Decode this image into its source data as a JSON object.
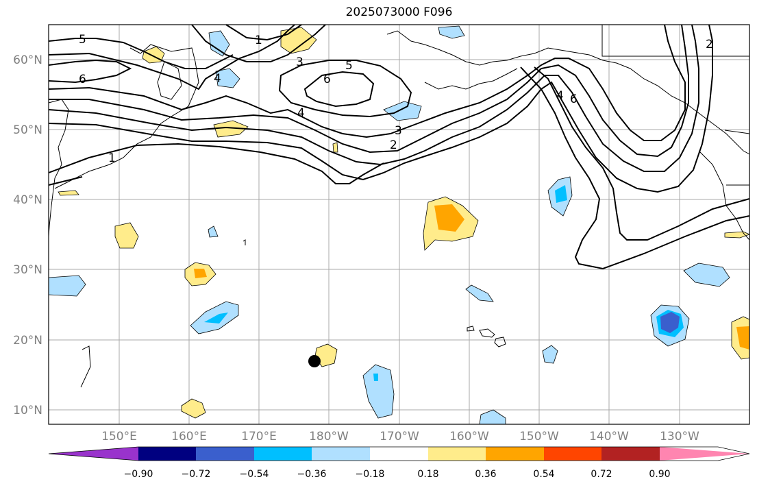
{
  "title": "2025073000 F096",
  "map": {
    "lat_labels": [
      "60°N",
      "50°N",
      "40°N",
      "30°N",
      "20°N",
      "10°N"
    ],
    "lon_labels": [
      "150°E",
      "160°E",
      "170°E",
      "180°W",
      "170°W",
      "160°W",
      "150°W",
      "140°W",
      "130°W"
    ],
    "contour_labels": [
      "5",
      "6",
      "1",
      "3",
      "5",
      "6",
      "4",
      "3",
      "2",
      "1",
      "4",
      "4",
      "6",
      "2"
    ],
    "marker": {
      "label": "black dot",
      "lon": 182,
      "lat": 17
    }
  },
  "colorbar": {
    "colors": [
      "#9933cc",
      "#000080",
      "#3a5fcd",
      "#00bfff",
      "#b0e0ff",
      "#ffffff",
      "#ffec8b",
      "#ffa500",
      "#ff4500",
      "#b22222",
      "#ff85b0"
    ],
    "tick_labels": [
      "−0.90",
      "−0.72",
      "−0.54",
      "−0.36",
      "−0.18",
      "0.18",
      "0.36",
      "0.54",
      "0.72",
      "0.90"
    ]
  }
}
